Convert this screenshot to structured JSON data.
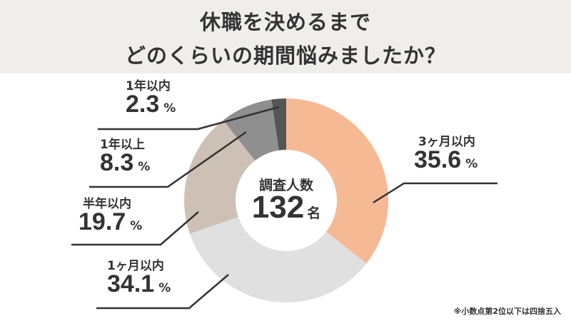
{
  "title_lines": [
    "休職を決めるまで",
    "どのくらいの期間悩みましたか？"
  ],
  "center": {
    "label": "調査人数",
    "count": "132",
    "unit": "名"
  },
  "note": "※小数点第2位以下は四捨五入",
  "chart_data": {
    "type": "pie",
    "donut": true,
    "start": "top, clockwise",
    "unit": "%",
    "categories": [
      "3ヶ月以内",
      "1ヶ月以内",
      "半年以内",
      "1年以上",
      "1年以内"
    ],
    "values": [
      35.6,
      34.1,
      19.7,
      8.3,
      2.3
    ],
    "value_labels": [
      "35.6",
      "34.1",
      "19.7",
      "8.3",
      "2.3"
    ],
    "colors": [
      "#f5b994",
      "#e0e0e0",
      "#cdc1b6",
      "#8f8f8f",
      "#555555"
    ]
  }
}
